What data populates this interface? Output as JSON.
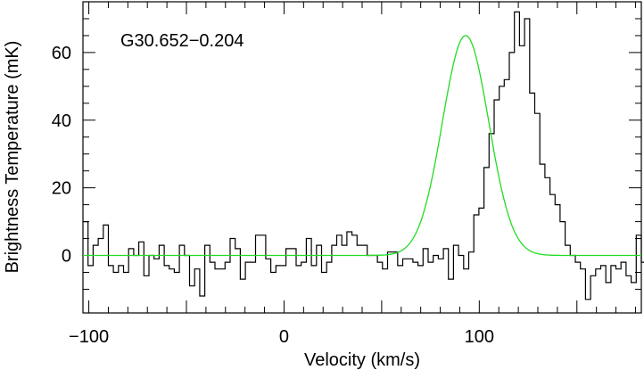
{
  "chart_data": {
    "type": "line",
    "title": "G30.652−0.204",
    "xlabel": "Velocity (km/s)",
    "ylabel": "Brightness Temperature (mK)",
    "xlim": [
      -103,
      183
    ],
    "ylim": [
      -17,
      75
    ],
    "x_ticks": [
      -100,
      0,
      100
    ],
    "x_tick_labels": [
      "−100",
      "0",
      "100"
    ],
    "y_ticks": [
      0,
      20,
      40,
      60
    ],
    "y_tick_labels": [
      "0",
      "20",
      "40",
      "60"
    ],
    "grid": false,
    "series": [
      {
        "style": "histogram",
        "color": "#000000",
        "x_start": -103,
        "bin_width": 2.6,
        "values": [
          10,
          -3,
          3,
          5,
          9,
          -3,
          -5,
          -3,
          -5,
          2,
          0,
          4,
          -6,
          0,
          -1,
          3,
          -3,
          -4,
          -5,
          3,
          0,
          -9,
          -4,
          -12,
          3,
          -2,
          -4,
          -4,
          -2,
          5,
          2,
          -7,
          -2,
          -2,
          6,
          6,
          -1,
          -5,
          -3,
          -3,
          2,
          2,
          -3,
          -2,
          5,
          -3,
          3,
          -5,
          -2,
          3,
          6,
          3,
          7,
          6,
          3,
          3,
          0,
          0,
          -2,
          -4,
          1,
          1,
          -3,
          -1,
          -1,
          -2,
          -3,
          2,
          -2,
          0,
          -1,
          2,
          -7,
          3,
          0,
          -4,
          1,
          12,
          14,
          26,
          36,
          46,
          50,
          52,
          60,
          72,
          62,
          70,
          48,
          42,
          27,
          23,
          18,
          15,
          10,
          3,
          0,
          -2,
          -4,
          -13,
          -6,
          -4,
          -3,
          -8,
          -3,
          -4,
          -2,
          -6,
          -8,
          6,
          -2,
          -2,
          3,
          2,
          6,
          0,
          -3,
          6,
          10
        ]
      },
      {
        "style": "line",
        "name": "",
        "color": "#22dd22",
        "model": "gaussian",
        "amplitude": 65,
        "center": 93,
        "fwhm": 28
      }
    ]
  }
}
